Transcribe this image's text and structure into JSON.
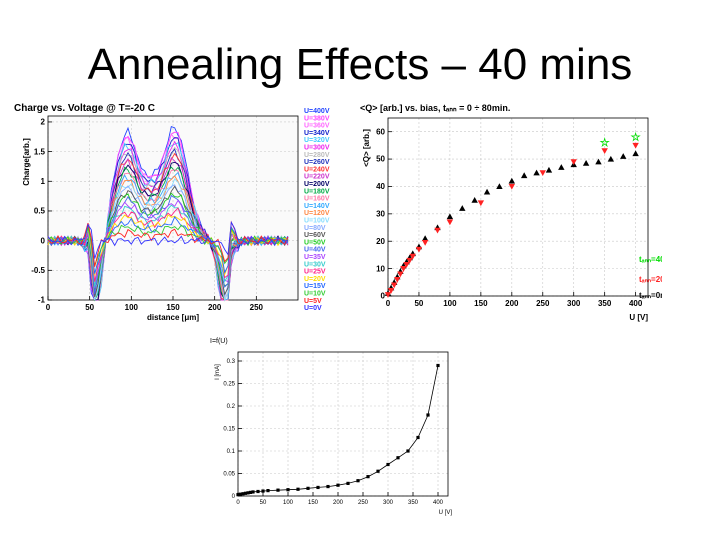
{
  "slide": {
    "title": "Annealing Effects – 40 mins"
  },
  "chart_data": [
    {
      "type": "line",
      "title": "Charge vs. Voltage @ T=-20 C",
      "xlabel": "distance [μm]",
      "ylabel": "Charge[arb.]",
      "xlim": [
        0,
        300
      ],
      "ylim": [
        -1,
        2.1
      ],
      "x_ticks": [
        "0",
        "50",
        "100",
        "150",
        "200",
        "250"
      ],
      "y_ticks": [
        "-1",
        "-0.5",
        "0",
        "0.5",
        "1",
        "1.5",
        "2"
      ],
      "grid": true,
      "legend_position": "right",
      "series": [
        {
          "name": "U=400V",
          "color": "#2244ff"
        },
        {
          "name": "U=380V",
          "color": "#ff44ff"
        },
        {
          "name": "U=360V",
          "color": "#ff66ff"
        },
        {
          "name": "U=340V",
          "color": "#1122cc"
        },
        {
          "name": "U=320V",
          "color": "#44ccff"
        },
        {
          "name": "U=300V",
          "color": "#ee22ee"
        },
        {
          "name": "U=280V",
          "color": "#bbbbbb"
        },
        {
          "name": "U=260V",
          "color": "#2233bb"
        },
        {
          "name": "U=240V",
          "color": "#ff3333"
        },
        {
          "name": "U=220V",
          "color": "#cc33cc"
        },
        {
          "name": "U=200V",
          "color": "#000066"
        },
        {
          "name": "U=180V",
          "color": "#00aa44"
        },
        {
          "name": "U=160V",
          "color": "#ff77aa"
        },
        {
          "name": "U=140V",
          "color": "#33aaff"
        },
        {
          "name": "U=120V",
          "color": "#ff8844"
        },
        {
          "name": "U=100V",
          "color": "#88ddff"
        },
        {
          "name": "U=80V",
          "color": "#88aaff"
        },
        {
          "name": "U=60V",
          "color": "#555555"
        },
        {
          "name": "U=50V",
          "color": "#22cc22"
        },
        {
          "name": "U=40V",
          "color": "#4466ee"
        },
        {
          "name": "U=35V",
          "color": "#aa44ff"
        },
        {
          "name": "U=30V",
          "color": "#33cccc"
        },
        {
          "name": "U=25V",
          "color": "#ff2288"
        },
        {
          "name": "U=20V",
          "color": "#ffdd00"
        },
        {
          "name": "U=15V",
          "color": "#2266ff"
        },
        {
          "name": "U=10V",
          "color": "#33cc33"
        },
        {
          "name": "U=5V",
          "color": "#ff2222"
        },
        {
          "name": "U=0V",
          "color": "#3333ff"
        }
      ]
    },
    {
      "type": "scatter",
      "title": "<Q> [arb.] vs. bias, tₐₙₙ = 0 ÷ 80min.",
      "xlabel": "U [V]",
      "ylabel": "<Q> [arb.]",
      "xlim": [
        0,
        420
      ],
      "ylim": [
        0,
        65
      ],
      "x_ticks": [
        "0",
        "50",
        "100",
        "150",
        "200",
        "250",
        "300",
        "350",
        "400"
      ],
      "y_ticks": [
        "0",
        "10",
        "20",
        "30",
        "40",
        "50",
        "60"
      ],
      "grid": true,
      "legend_position": "bottom-right",
      "series": [
        {
          "name": "tₐₙₙ=40min.",
          "color": "#00dd00",
          "marker": "open-star",
          "x": [
            350,
            400
          ],
          "y": [
            56,
            58
          ]
        },
        {
          "name": "tₐₙₙ=20min.",
          "color": "#ff2222",
          "marker": "triangle-down",
          "x": [
            0,
            5,
            10,
            15,
            20,
            25,
            30,
            35,
            40,
            50,
            60,
            80,
            100,
            150,
            200,
            250,
            300,
            350,
            400
          ],
          "y": [
            0.5,
            2,
            4,
            6,
            8,
            10,
            11.5,
            13,
            14.5,
            17,
            19.5,
            24,
            27,
            34,
            40,
            45,
            49,
            53,
            55
          ]
        },
        {
          "name": "tₐₙₙ=0min.",
          "color": "#000000",
          "marker": "triangle-up",
          "x": [
            0,
            5,
            10,
            15,
            20,
            25,
            30,
            35,
            40,
            50,
            60,
            80,
            100,
            120,
            140,
            160,
            180,
            200,
            220,
            240,
            260,
            280,
            300,
            320,
            340,
            360,
            380,
            400
          ],
          "y": [
            1,
            3,
            5,
            7,
            9,
            11,
            12.5,
            14,
            15.5,
            18,
            21,
            25,
            29,
            32,
            35,
            38,
            40,
            42,
            44,
            45,
            46,
            47,
            48,
            48.5,
            49,
            50,
            51,
            52
          ]
        }
      ]
    },
    {
      "type": "line",
      "title": "I=f(U)",
      "xlabel": "U [V]",
      "ylabel": "I [mA]",
      "xlim": [
        0,
        420
      ],
      "ylim": [
        0,
        0.32
      ],
      "x_ticks": [
        "0",
        "50",
        "100",
        "150",
        "200",
        "250",
        "300",
        "350",
        "400"
      ],
      "y_ticks": [
        "0",
        "0.05",
        "0.1",
        "0.15",
        "0.2",
        "0.25",
        "0.3"
      ],
      "grid": true,
      "series": [
        {
          "name": "",
          "color": "#000000",
          "x": [
            0,
            5,
            10,
            15,
            20,
            25,
            30,
            40,
            50,
            60,
            80,
            100,
            120,
            140,
            160,
            180,
            200,
            220,
            240,
            260,
            280,
            300,
            320,
            340,
            360,
            380,
            400
          ],
          "y": [
            0.003,
            0.004,
            0.005,
            0.006,
            0.007,
            0.008,
            0.009,
            0.01,
            0.011,
            0.012,
            0.013,
            0.014,
            0.015,
            0.017,
            0.019,
            0.021,
            0.024,
            0.028,
            0.034,
            0.043,
            0.055,
            0.07,
            0.085,
            0.1,
            0.13,
            0.18,
            0.29
          ]
        }
      ]
    }
  ]
}
